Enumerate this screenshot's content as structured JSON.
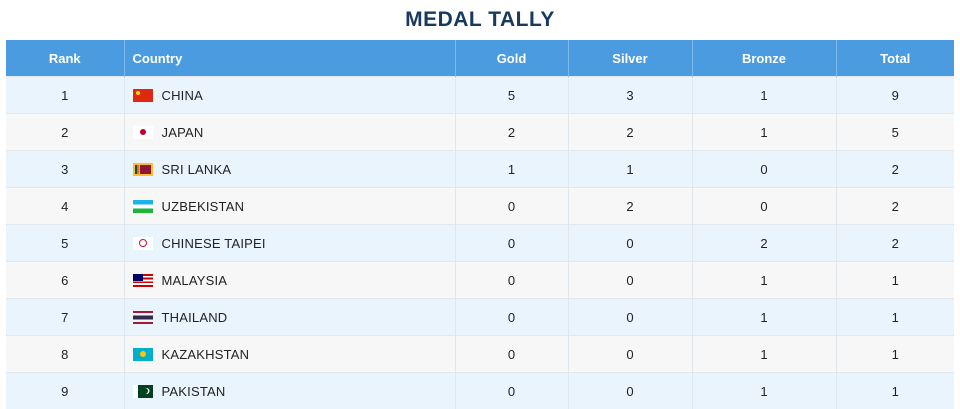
{
  "title": "MEDAL TALLY",
  "headers": {
    "rank": "Rank",
    "country": "Country",
    "gold": "Gold",
    "silver": "Silver",
    "bronze": "Bronze",
    "total": "Total"
  },
  "rows": [
    {
      "rank": "1",
      "flag_icon": "china-flag-icon",
      "country": "CHINA",
      "gold": "5",
      "silver": "3",
      "bronze": "1",
      "total": "9"
    },
    {
      "rank": "2",
      "flag_icon": "japan-flag-icon",
      "country": "JAPAN",
      "gold": "2",
      "silver": "2",
      "bronze": "1",
      "total": "5"
    },
    {
      "rank": "3",
      "flag_icon": "sri-lanka-flag-icon",
      "country": "SRI LANKA",
      "gold": "1",
      "silver": "1",
      "bronze": "0",
      "total": "2"
    },
    {
      "rank": "4",
      "flag_icon": "uzbekistan-flag-icon",
      "country": "UZBEKISTAN",
      "gold": "0",
      "silver": "2",
      "bronze": "0",
      "total": "2"
    },
    {
      "rank": "5",
      "flag_icon": "chinese-taipei-flag-icon",
      "country": "CHINESE TAIPEI",
      "gold": "0",
      "silver": "0",
      "bronze": "2",
      "total": "2"
    },
    {
      "rank": "6",
      "flag_icon": "malaysia-flag-icon",
      "country": "MALAYSIA",
      "gold": "0",
      "silver": "0",
      "bronze": "1",
      "total": "1"
    },
    {
      "rank": "7",
      "flag_icon": "thailand-flag-icon",
      "country": "THAILAND",
      "gold": "0",
      "silver": "0",
      "bronze": "1",
      "total": "1"
    },
    {
      "rank": "8",
      "flag_icon": "kazakhstan-flag-icon",
      "country": "KAZAKHSTAN",
      "gold": "0",
      "silver": "0",
      "bronze": "1",
      "total": "1"
    },
    {
      "rank": "9",
      "flag_icon": "pakistan-flag-icon",
      "country": "PAKISTAN",
      "gold": "0",
      "silver": "0",
      "bronze": "1",
      "total": "1"
    }
  ],
  "colors": {
    "title": "#173a5e",
    "header_bg": "#4a9be0",
    "row_odd": "#eaf4fd",
    "row_even": "#f7f7f7"
  }
}
